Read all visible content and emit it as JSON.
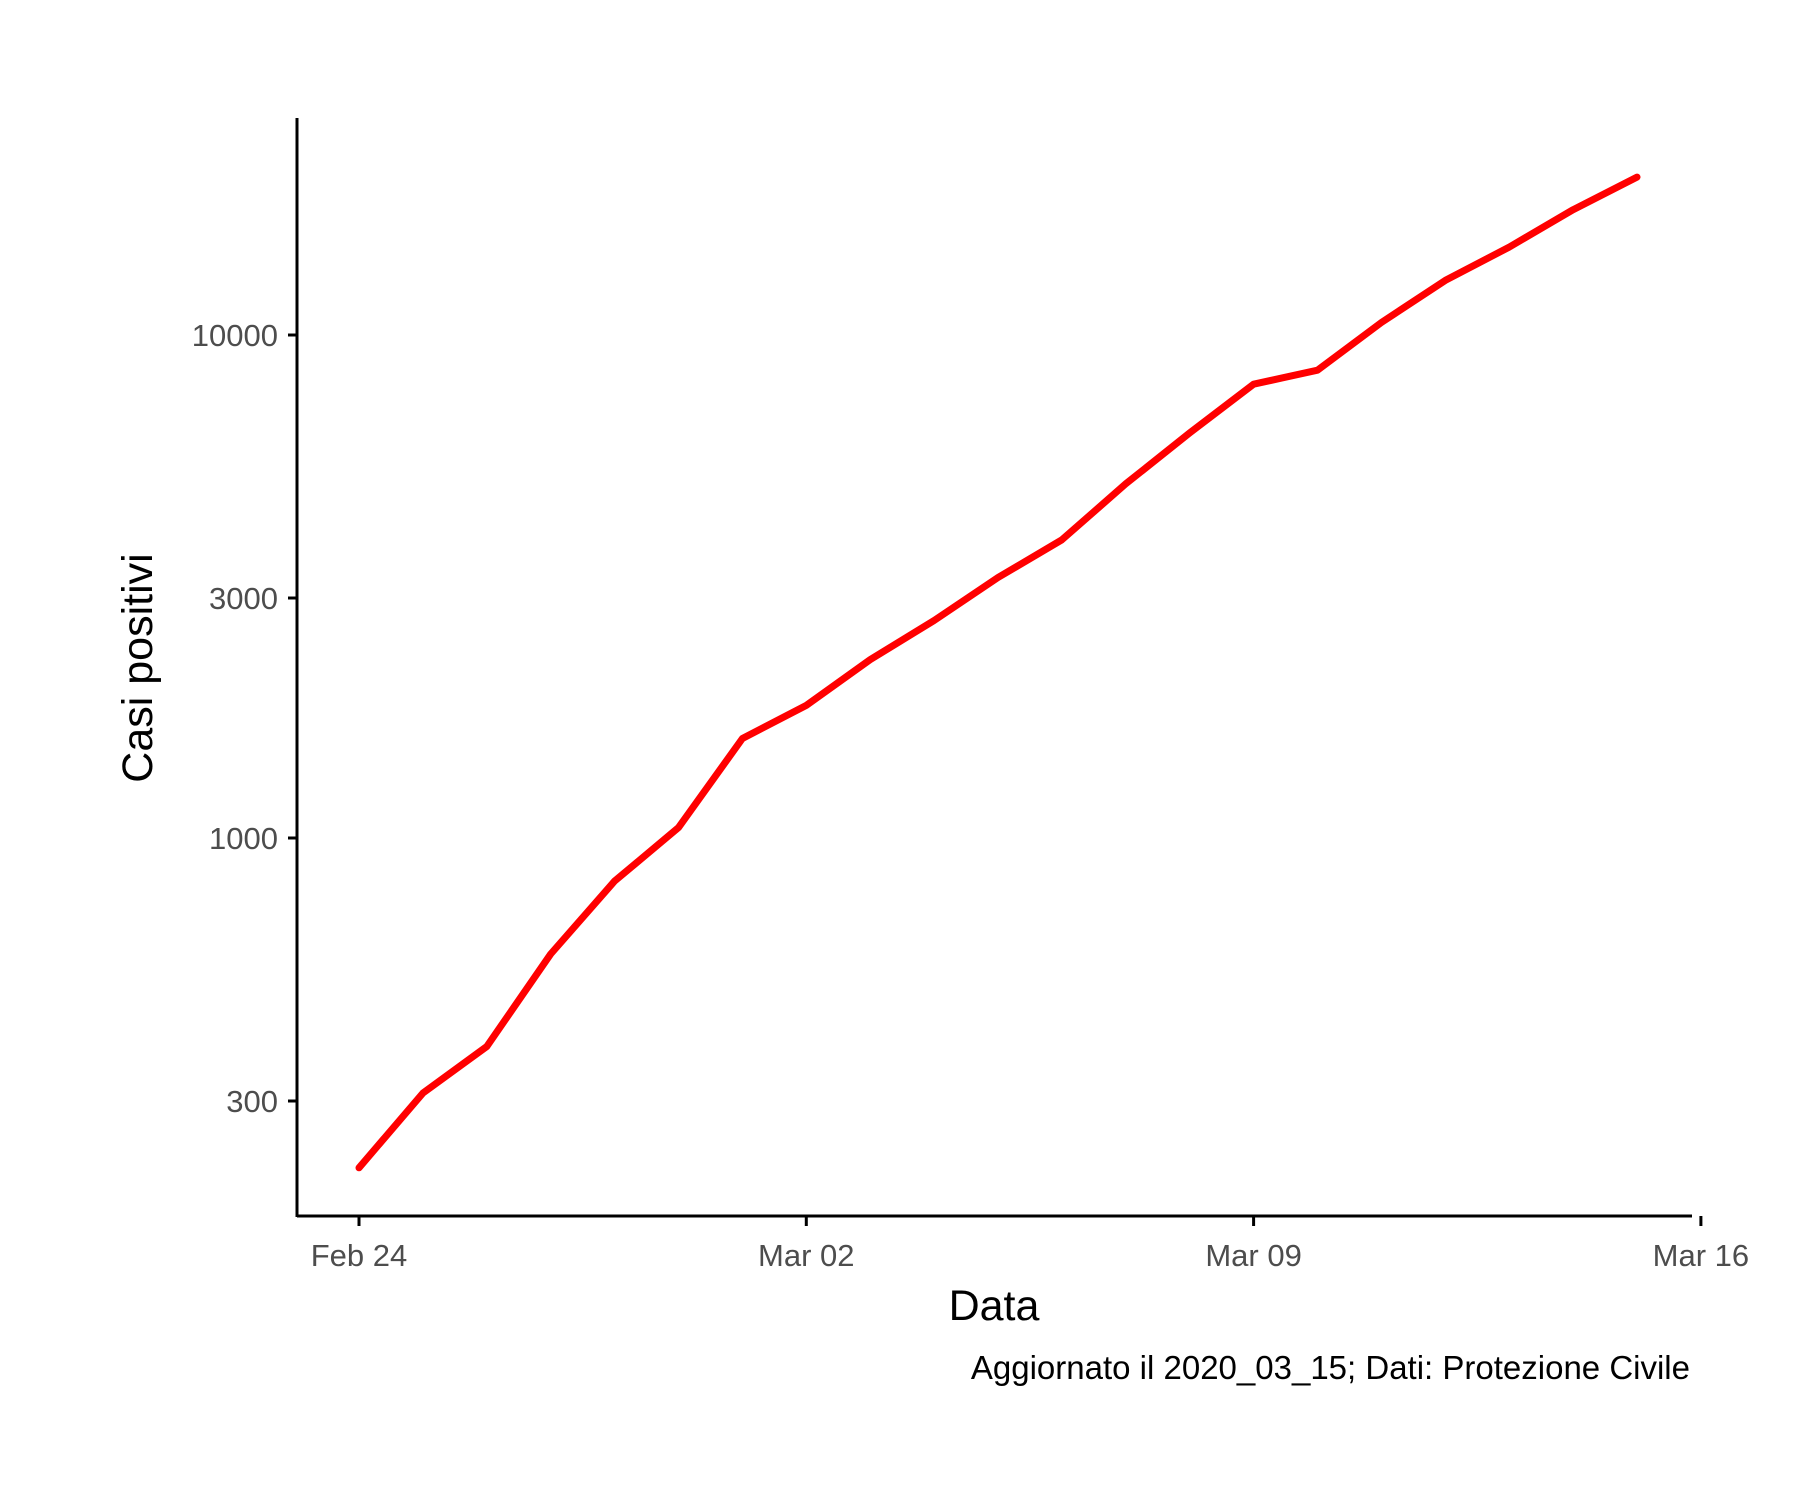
{
  "chart_data": {
    "type": "line",
    "title": "",
    "xlabel": "Data",
    "ylabel": "Casi positivi",
    "caption": "Aggiornato il 2020_03_15; Dati: Protezione Civile",
    "y_scale": "log10",
    "grid": false,
    "legend": "none",
    "x_ticks": [
      {
        "date": "2020-02-24",
        "label": "Feb 24"
      },
      {
        "date": "2020-03-02",
        "label": "Mar 02"
      },
      {
        "date": "2020-03-09",
        "label": "Mar 09"
      },
      {
        "date": "2020-03-16",
        "label": "Mar 16"
      }
    ],
    "y_ticks": [
      {
        "value": 300,
        "label": "300"
      },
      {
        "value": 1000,
        "label": "1000"
      },
      {
        "value": 3000,
        "label": "3000"
      },
      {
        "value": 10000,
        "label": "10000"
      }
    ],
    "xlim": [
      "2020-02-23",
      "2020-03-16"
    ],
    "ylim": [
      150,
      30000
    ],
    "series": [
      {
        "color": "#ff0000",
        "points": [
          {
            "x": "2020-02-24",
            "y": 221
          },
          {
            "x": "2020-02-25",
            "y": 311
          },
          {
            "x": "2020-02-26",
            "y": 385
          },
          {
            "x": "2020-02-27",
            "y": 588
          },
          {
            "x": "2020-02-28",
            "y": 821
          },
          {
            "x": "2020-02-29",
            "y": 1049
          },
          {
            "x": "2020-03-01",
            "y": 1577
          },
          {
            "x": "2020-03-02",
            "y": 1835
          },
          {
            "x": "2020-03-03",
            "y": 2263
          },
          {
            "x": "2020-03-04",
            "y": 2706
          },
          {
            "x": "2020-03-05",
            "y": 3296
          },
          {
            "x": "2020-03-06",
            "y": 3916
          },
          {
            "x": "2020-03-07",
            "y": 5061
          },
          {
            "x": "2020-03-08",
            "y": 6387
          },
          {
            "x": "2020-03-09",
            "y": 7985
          },
          {
            "x": "2020-03-10",
            "y": 8514
          },
          {
            "x": "2020-03-11",
            "y": 10590
          },
          {
            "x": "2020-03-12",
            "y": 12839
          },
          {
            "x": "2020-03-13",
            "y": 14955
          },
          {
            "x": "2020-03-14",
            "y": 17750
          },
          {
            "x": "2020-03-15",
            "y": 20603
          }
        ]
      }
    ]
  }
}
